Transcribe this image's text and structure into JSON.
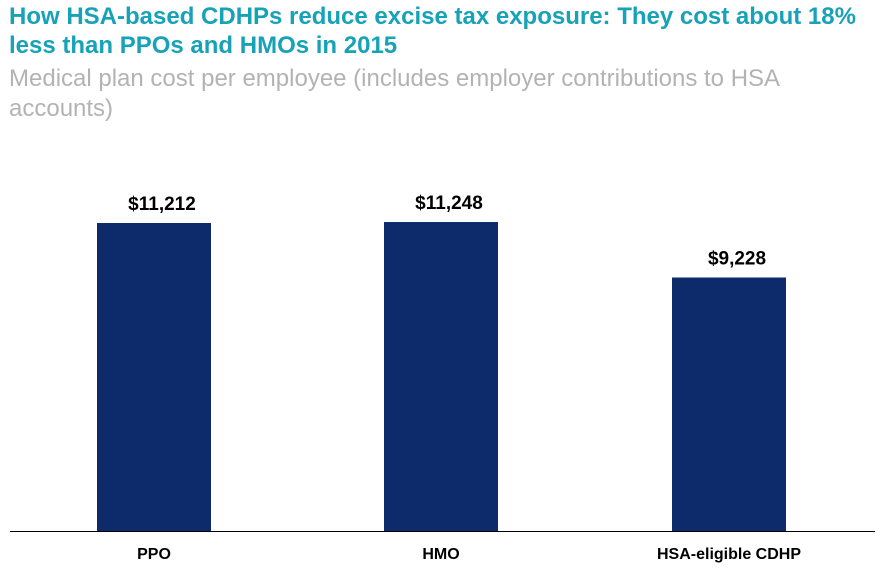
{
  "chart_data": {
    "type": "bar",
    "title": "How HSA-based CDHPs reduce excise tax exposure:  They cost about 18% less than PPOs and HMOs in 2015",
    "subtitle": "Medical plan cost per employee (includes employer contributions to HSA accounts)",
    "categories": [
      "PPO",
      "HMO",
      "HSA-eligible CDHP"
    ],
    "values": [
      11212,
      11248,
      9228
    ],
    "value_labels": [
      "$11,212",
      "$11,248",
      "$9,228"
    ],
    "ylim": [
      0,
      14500
    ],
    "grid": false,
    "legend": "none"
  },
  "colors": {
    "title": "#17a2b8",
    "subtitle": "#b3b3b3",
    "bar": "#0d2a6b",
    "axis": "#000000"
  }
}
